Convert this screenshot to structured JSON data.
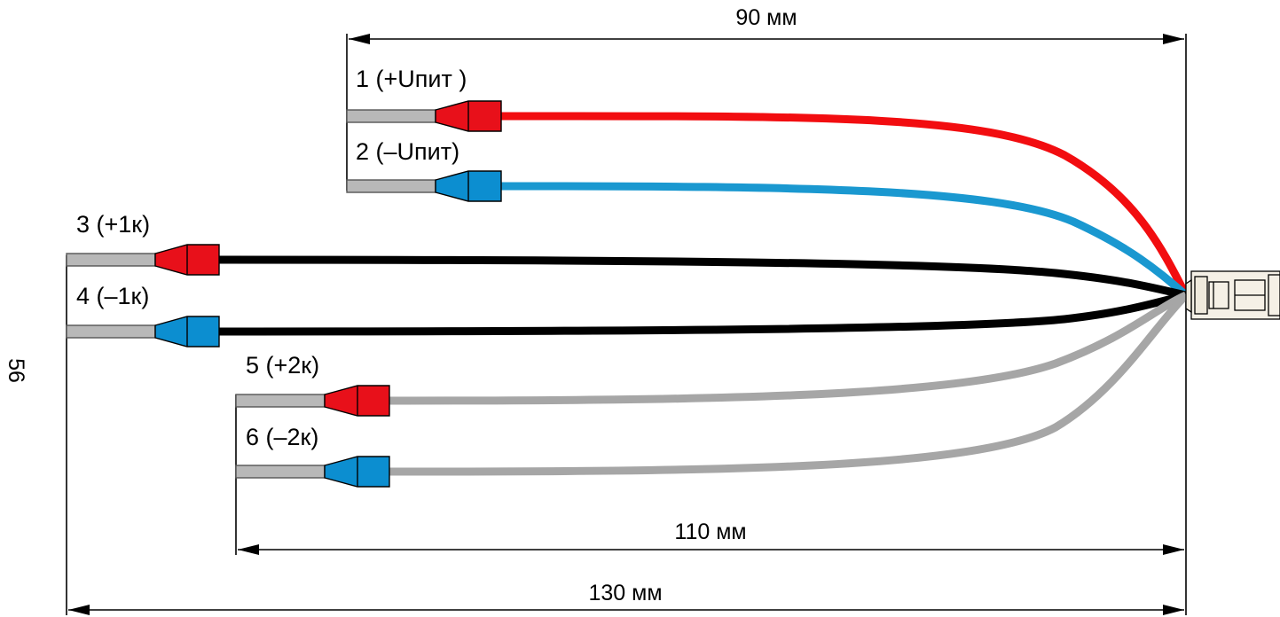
{
  "dimensions": {
    "top": "90 мм",
    "middle": "110 мм",
    "bottom": "130 мм",
    "side": "56"
  },
  "wires": [
    {
      "label": "1 (+Uпит )",
      "wire_color": "#f20d10",
      "tip_color": "#e8101a"
    },
    {
      "label": "2 (–Uпит)",
      "wire_color": "#1a98d0",
      "tip_color": "#0c8ed0"
    },
    {
      "label": "3 (+1к)",
      "wire_color": "#000000",
      "tip_color": "#e8101a"
    },
    {
      "label": "4 (–1к)",
      "wire_color": "#000000",
      "tip_color": "#0c8ed0"
    },
    {
      "label": "5 (+2к)",
      "wire_color": "#a6a6a6",
      "tip_color": "#e8101a"
    },
    {
      "label": "6 (–2к)",
      "wire_color": "#a6a6a6",
      "tip_color": "#0c8ed0"
    }
  ],
  "connector": {
    "name": "connector-icon",
    "color": "#f5f0e6"
  }
}
